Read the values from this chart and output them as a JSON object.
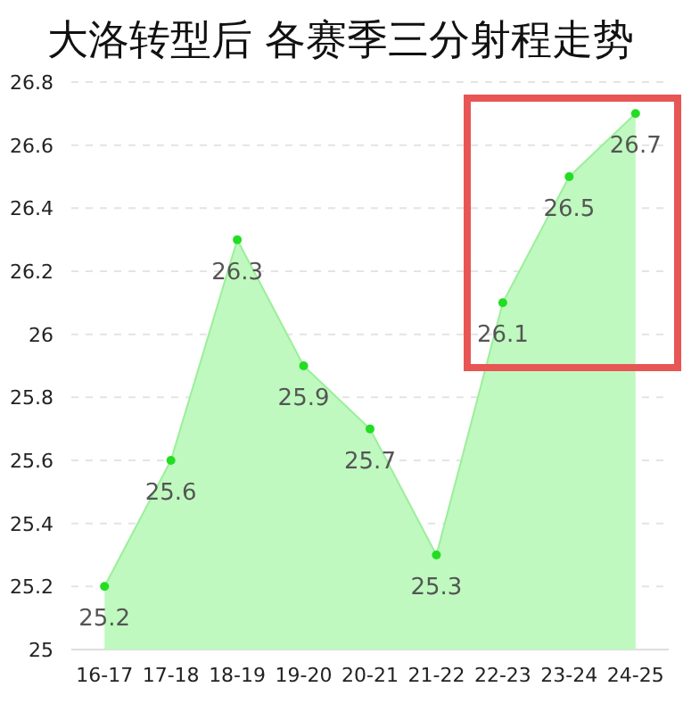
{
  "chart_data": {
    "type": "area",
    "title": "大洛转型后 各赛季三分射程走势",
    "categories": [
      "16-17",
      "17-18",
      "18-19",
      "19-20",
      "20-21",
      "21-22",
      "22-23",
      "23-24",
      "24-25"
    ],
    "values": [
      25.2,
      25.6,
      26.3,
      25.9,
      25.7,
      25.3,
      26.1,
      26.5,
      26.7
    ],
    "color": "#22dd22",
    "ylim": [
      25,
      26.8
    ],
    "yticks": [
      25,
      25.2,
      25.4,
      25.6,
      25.8,
      26,
      26.2,
      26.4,
      26.6,
      26.8
    ],
    "grid": "y",
    "marker": "circle",
    "data_labels": true
  }
}
